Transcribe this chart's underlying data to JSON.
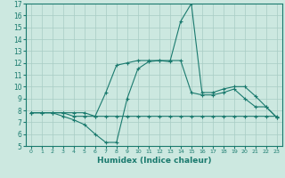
{
  "title": "",
  "xlabel": "Humidex (Indice chaleur)",
  "ylabel": "",
  "xlim": [
    -0.5,
    23.5
  ],
  "ylim": [
    5,
    17
  ],
  "yticks": [
    5,
    6,
    7,
    8,
    9,
    10,
    11,
    12,
    13,
    14,
    15,
    16,
    17
  ],
  "xticks": [
    0,
    1,
    2,
    3,
    4,
    5,
    6,
    7,
    8,
    9,
    10,
    11,
    12,
    13,
    14,
    15,
    16,
    17,
    18,
    19,
    20,
    21,
    22,
    23
  ],
  "bg_color": "#cce8e0",
  "line_color": "#1a7a6e",
  "grid_color": "#a8ccc4",
  "curves": [
    {
      "x": [
        0,
        1,
        2,
        3,
        4,
        5,
        6,
        7,
        8,
        9,
        10,
        11,
        12,
        13,
        14,
        15,
        16,
        17,
        18,
        19,
        20,
        21,
        22,
        23
      ],
      "y": [
        7.8,
        7.8,
        7.8,
        7.8,
        7.8,
        7.8,
        7.5,
        7.5,
        7.5,
        7.5,
        7.5,
        7.5,
        7.5,
        7.5,
        7.5,
        7.5,
        7.5,
        7.5,
        7.5,
        7.5,
        7.5,
        7.5,
        7.5,
        7.5
      ]
    },
    {
      "x": [
        0,
        1,
        2,
        3,
        4,
        5,
        6,
        7,
        8,
        9,
        10,
        11,
        12,
        13,
        14,
        15,
        16,
        17,
        18,
        19,
        20,
        21,
        22,
        23
      ],
      "y": [
        7.8,
        7.8,
        7.8,
        7.5,
        7.2,
        6.8,
        6.0,
        5.3,
        5.3,
        9.0,
        11.5,
        12.1,
        12.2,
        12.1,
        15.5,
        17.0,
        9.5,
        9.5,
        9.8,
        10.0,
        10.0,
        9.2,
        8.3,
        7.4
      ]
    },
    {
      "x": [
        0,
        1,
        2,
        3,
        4,
        5,
        6,
        7,
        8,
        9,
        10,
        11,
        12,
        13,
        14,
        15,
        16,
        17,
        18,
        19,
        20,
        21,
        22,
        23
      ],
      "y": [
        7.8,
        7.8,
        7.8,
        7.8,
        7.5,
        7.5,
        7.5,
        9.5,
        11.8,
        12.0,
        12.2,
        12.2,
        12.2,
        12.2,
        12.2,
        9.5,
        9.3,
        9.3,
        9.5,
        9.8,
        9.0,
        8.3,
        8.3,
        7.4
      ]
    }
  ]
}
